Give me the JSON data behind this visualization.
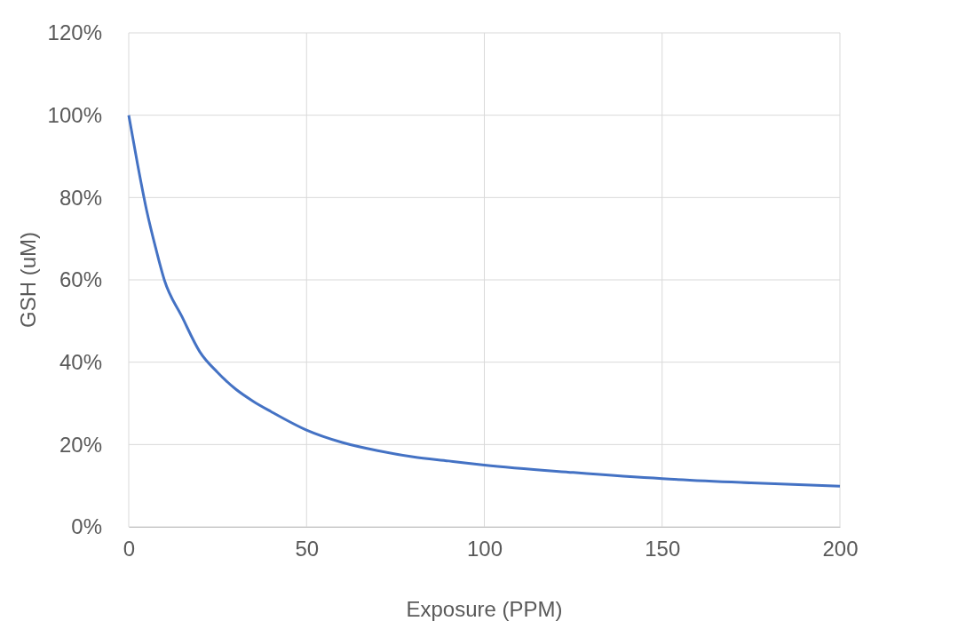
{
  "chart_data": {
    "type": "line",
    "xlabel": "Exposure (PPM)",
    "ylabel": "GSH (uM)",
    "x": [
      0,
      2.5,
      5,
      7.5,
      10,
      15,
      20,
      25,
      30,
      35,
      40,
      50,
      60,
      70,
      80,
      90,
      100,
      125,
      150,
      175,
      200
    ],
    "series": [
      {
        "color": "#4472c4",
        "values": [
          100,
          88,
          77,
          68,
          60,
          51,
          42.5,
          37.5,
          33.5,
          30.5,
          28,
          23.5,
          20.5,
          18.5,
          17,
          16,
          15,
          13.2,
          11.7,
          10.7,
          9.9
        ]
      }
    ],
    "xlim": [
      0,
      200
    ],
    "xticks": [
      0,
      50,
      100,
      150,
      200
    ],
    "ylim": [
      0,
      120
    ],
    "yticks": [
      {
        "value": 0,
        "label": "0%"
      },
      {
        "value": 20,
        "label": "20%"
      },
      {
        "value": 40,
        "label": "40%"
      },
      {
        "value": 60,
        "label": "60%"
      },
      {
        "value": 80,
        "label": "80%"
      },
      {
        "value": 100,
        "label": "100%"
      },
      {
        "value": 120,
        "label": "120%"
      }
    ],
    "grid": true,
    "marker": "none",
    "line_style": "solid"
  }
}
